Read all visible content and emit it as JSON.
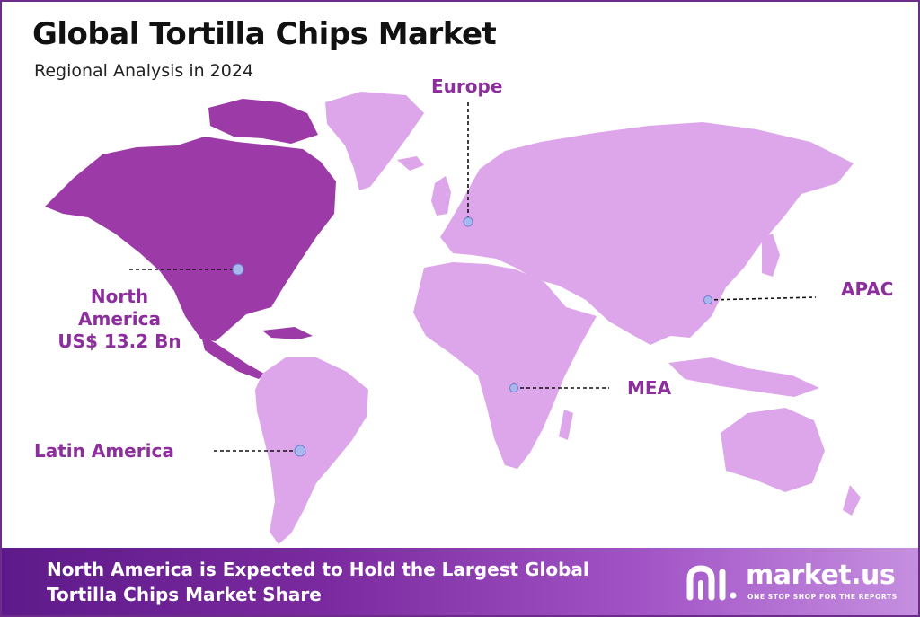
{
  "header": {
    "title": "Global Tortilla Chips Market",
    "subtitle": "Regional Analysis in 2024"
  },
  "regions": {
    "europe": "Europe",
    "north_america": [
      "North",
      "America",
      "US$ 13.2 Bn"
    ],
    "apac": "APAC",
    "mea": "MEA",
    "latin_america": "Latin America"
  },
  "banner": {
    "line1": "North America is Expected to Hold the Largest Global",
    "line2": "Tortilla Chips Market Share"
  },
  "logo": {
    "name": "market.us",
    "tagline": "ONE STOP SHOP FOR THE REPORTS"
  },
  "colors": {
    "highlight_region": "#9c3aa8",
    "other_regions": "#dda6ea",
    "label_text": "#8c2e9c",
    "marker": "#a9b8ec"
  }
}
